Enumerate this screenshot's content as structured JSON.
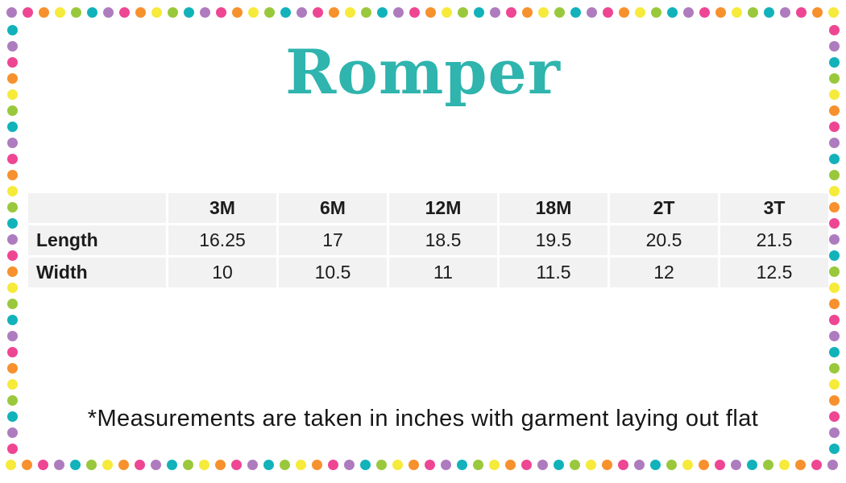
{
  "chart_data": {
    "type": "table",
    "title": "Romper",
    "columns": [
      "",
      "3M",
      "6M",
      "12M",
      "18M",
      "2T",
      "3T"
    ],
    "rows": [
      {
        "label": "Length",
        "values": [
          16.25,
          17,
          18.5,
          19.5,
          20.5,
          21.5
        ]
      },
      {
        "label": "Width",
        "values": [
          10,
          10.5,
          11,
          11.5,
          12,
          12.5
        ]
      }
    ],
    "units": "inches",
    "footnote": "*Measurements are taken in inches with garment laying out flat",
    "layout_hints": {
      "header_bold": true,
      "row_labels_bold": true,
      "cell_background": "#f2f2f2",
      "grid_gap_color": "#ffffff"
    }
  },
  "colors": {
    "title_teal": "#2fb4ae",
    "table_text": "#1c1c1c",
    "cell_bg": "#f2f2f2"
  },
  "border": {
    "dot_colors": {
      "purple": "#ae7cbe",
      "pink": "#ee4693",
      "orange": "#f7912d",
      "yellow": "#f6ea3b",
      "green": "#9ac83c",
      "teal": "#12b2ba"
    },
    "top_sequence": [
      "purple",
      "pink",
      "orange",
      "yellow",
      "green",
      "teal"
    ],
    "bottom_sequence": [
      "yellow",
      "orange",
      "pink",
      "purple",
      "teal",
      "green"
    ],
    "left_sequence": [
      "teal",
      "purple",
      "pink",
      "orange",
      "yellow",
      "green"
    ],
    "right_sequence": [
      "pink",
      "purple",
      "teal",
      "green",
      "yellow",
      "orange"
    ]
  }
}
